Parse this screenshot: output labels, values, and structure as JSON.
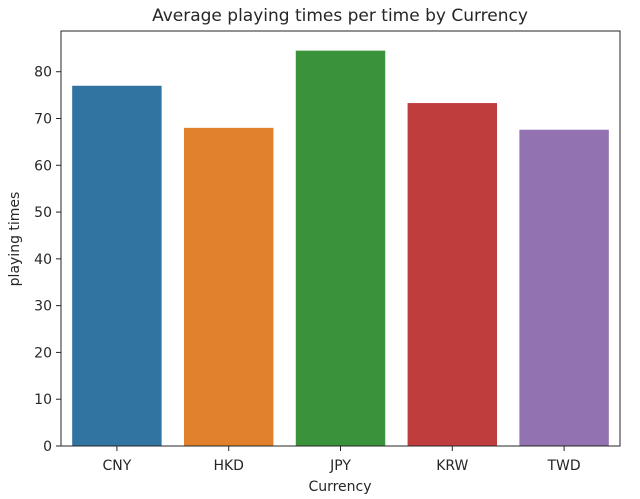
{
  "chart_data": {
    "type": "bar",
    "title": "Average playing times per time by Currency",
    "xlabel": "Currency",
    "ylabel": "playing times",
    "categories": [
      "CNY",
      "HKD",
      "JPY",
      "KRW",
      "TWD"
    ],
    "values": [
      77.0,
      68.0,
      84.5,
      73.3,
      67.6
    ],
    "colors": [
      "#3274a1",
      "#e1812c",
      "#3a923a",
      "#c03d3e",
      "#9372b2"
    ],
    "ylim": [
      0,
      88.7
    ],
    "yticks": [
      0,
      10,
      20,
      30,
      40,
      50,
      60,
      70,
      80
    ],
    "grid": false,
    "legend": "none"
  }
}
